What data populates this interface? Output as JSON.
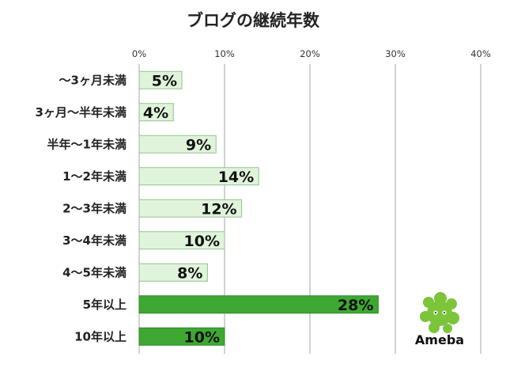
{
  "chart_data": {
    "type": "bar",
    "orientation": "horizontal",
    "title": "ブログの継続年数",
    "categories": [
      "～3ヶ月未満",
      "3ヶ月～半年未満",
      "半年～1年未満",
      "1～2年未満",
      "2～3年未満",
      "3～4年未満",
      "4～5年未満",
      "5年以上",
      "10年以上"
    ],
    "values": [
      5,
      4,
      9,
      14,
      12,
      10,
      8,
      28,
      10
    ],
    "value_labels": [
      "5%",
      "4%",
      "9%",
      "14%",
      "12%",
      "10%",
      "8%",
      "28%",
      "10%"
    ],
    "highlight": [
      false,
      false,
      false,
      false,
      false,
      false,
      false,
      true,
      true
    ],
    "xlim": [
      0,
      40
    ],
    "xticks": [
      0,
      10,
      20,
      30,
      40
    ],
    "xtick_labels": [
      "0%",
      "10%",
      "20%",
      "30%",
      "40%"
    ],
    "axis_position": "top",
    "grid": true,
    "colors": {
      "bar_light": "#e0f4dc",
      "bar_light_border": "#8fc48a",
      "bar_dark": "#3ea833",
      "bar_dark_border": "#2e8a27",
      "grid": "#a6a6a6"
    }
  },
  "logo": {
    "text": "Ameba",
    "icon": "ameba-mascot-icon",
    "color": "#7cc43a"
  }
}
